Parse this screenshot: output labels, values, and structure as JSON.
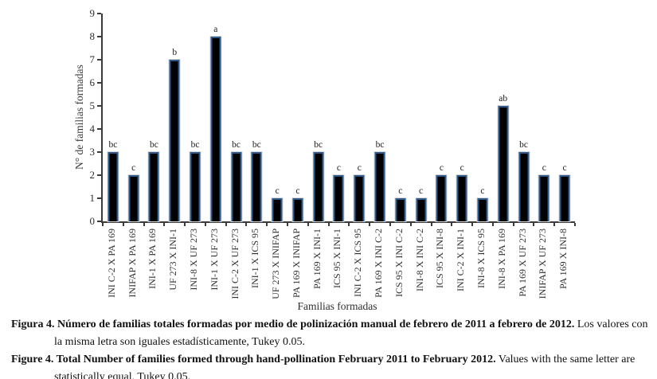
{
  "figure": {
    "y_axis_title": "N° de familias formadas",
    "x_axis_title": "Familias formadas",
    "caption_es": {
      "bold": "Figura 4. Número de familias totales formadas por medio de polinización manual de febrero de 2011 a febrero de 2012.",
      "regular": "Los valores con la misma letra son iguales estadísticamente, Tukey 0.05."
    },
    "caption_en": {
      "bold": "Figure 4. Total Number of families formed through hand-pollination February 2011 to February 2012.",
      "regular": "Values with the same letter are statistically equal, Tukey 0.05."
    }
  },
  "chart_data": {
    "type": "bar",
    "title": "",
    "xlabel": "Familias formadas",
    "ylabel": "N° de familias formadas",
    "ylim": [
      0,
      9
    ],
    "yticks": [
      0,
      1,
      2,
      3,
      4,
      5,
      6,
      7,
      8,
      9
    ],
    "grid": false,
    "legend": false,
    "bar_fill_color": "#000000",
    "bar_border_color": "#2e5a8c",
    "axis_color": "#3b3b3b",
    "categories": [
      "INI C-2 X PA 169",
      "INIFAP X PA 169",
      "INI-1 X PA 169",
      "UF 273 X INI-1",
      "INI-8 X UF 273",
      "INI-1 X UF 273",
      "INI C-2 X UF 273",
      "INI-1 X ICS 95",
      "UF 273 X INIFAP",
      "PA 169 X INIFAP",
      "PA 169 X INI-1",
      "ICS 95 X INI-1",
      "INI C-2 X ICS 95",
      "PA 169 X INI C-2",
      "ICS 95 X INI C-2",
      "INI-8 X INI C-2",
      "ICS 95 X INI-8",
      "INI C-2 X INI-1",
      "INI-8 X ICS 95",
      "INI-8 X PA 169",
      "PA 169 X UF 273",
      "INIFAP X UF 273",
      "PA 169 X INI-8"
    ],
    "values": [
      3,
      2,
      3,
      7,
      3,
      8,
      3,
      3,
      1,
      1,
      3,
      2,
      2,
      3,
      1,
      1,
      2,
      2,
      1,
      5,
      3,
      2,
      2
    ],
    "significance_letters": [
      "bc",
      "c",
      "bc",
      "b",
      "bc",
      "a",
      "bc",
      "bc",
      "c",
      "c",
      "bc",
      "c",
      "c",
      "bc",
      "c",
      "c",
      "c",
      "c",
      "c",
      "ab",
      "bc",
      "c",
      "c"
    ]
  }
}
